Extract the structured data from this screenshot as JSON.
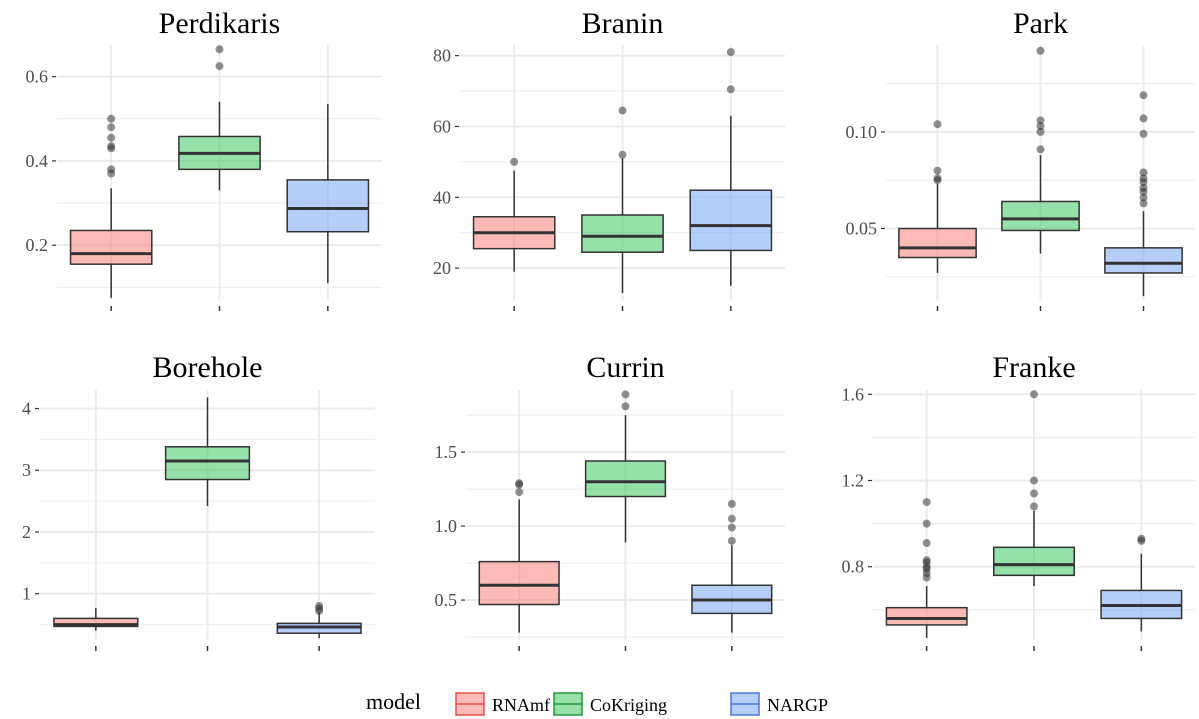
{
  "legend": {
    "title": "model",
    "items": [
      {
        "label": "RNAmf",
        "fill": "#F8766D",
        "stroke": "#E8524A"
      },
      {
        "label": "CoKriging",
        "fill": "#2DC253",
        "stroke": "#1E9A3F"
      },
      {
        "label": "NARGP",
        "fill": "#6E9EF5",
        "stroke": "#4A78D6"
      }
    ]
  },
  "colors": {
    "grid": "#EBEBEB",
    "box_border": "#333333",
    "outlier": "#333333",
    "tick_text": "#4D4D4D"
  },
  "chart_data": [
    {
      "type": "boxplot",
      "title": "Perdikaris",
      "ylim": [
        0.07,
        0.675
      ],
      "yticks": [
        0.2,
        0.4,
        0.6
      ],
      "ytick_labels": [
        "0.2",
        "0.4",
        "0.6"
      ],
      "grid": true,
      "series": [
        {
          "name": "RNAmf",
          "min": 0.075,
          "q1": 0.155,
          "median": 0.18,
          "q3": 0.235,
          "max": 0.335,
          "outliers": [
            0.37,
            0.38,
            0.43,
            0.435,
            0.455,
            0.48,
            0.5
          ]
        },
        {
          "name": "CoKriging",
          "min": 0.33,
          "q1": 0.38,
          "median": 0.418,
          "q3": 0.458,
          "max": 0.54,
          "outliers": [
            0.625,
            0.665
          ]
        },
        {
          "name": "NARGP",
          "min": 0.11,
          "q1": 0.232,
          "median": 0.287,
          "q3": 0.355,
          "max": 0.535,
          "outliers": []
        }
      ]
    },
    {
      "type": "boxplot",
      "title": "Branin",
      "ylim": [
        11,
        83
      ],
      "yticks": [
        20,
        40,
        60,
        80
      ],
      "ytick_labels": [
        "20",
        "40",
        "60",
        "80"
      ],
      "grid": true,
      "series": [
        {
          "name": "RNAmf",
          "min": 19,
          "q1": 25.5,
          "median": 30,
          "q3": 34.5,
          "max": 47.5,
          "outliers": [
            50
          ]
        },
        {
          "name": "CoKriging",
          "min": 13,
          "q1": 24.5,
          "median": 29,
          "q3": 35,
          "max": 51,
          "outliers": [
            52,
            64.5
          ]
        },
        {
          "name": "NARGP",
          "min": 15,
          "q1": 25,
          "median": 32,
          "q3": 42,
          "max": 63,
          "outliers": [
            70.5,
            81
          ]
        }
      ]
    },
    {
      "type": "boxplot",
      "title": "Park",
      "ylim": [
        0.013,
        0.145
      ],
      "yticks": [
        0.05,
        0.1
      ],
      "ytick_labels": [
        "0.05",
        "0.10"
      ],
      "grid": true,
      "series": [
        {
          "name": "RNAmf",
          "min": 0.027,
          "q1": 0.035,
          "median": 0.04,
          "q3": 0.05,
          "max": 0.073,
          "outliers": [
            0.075,
            0.076,
            0.08,
            0.104
          ]
        },
        {
          "name": "CoKriging",
          "min": 0.037,
          "q1": 0.049,
          "median": 0.055,
          "q3": 0.064,
          "max": 0.088,
          "outliers": [
            0.091,
            0.1,
            0.103,
            0.106,
            0.142
          ]
        },
        {
          "name": "NARGP",
          "min": 0.015,
          "q1": 0.027,
          "median": 0.032,
          "q3": 0.04,
          "max": 0.059,
          "outliers": [
            0.063,
            0.066,
            0.069,
            0.071,
            0.074,
            0.076,
            0.079,
            0.099,
            0.107,
            0.119
          ]
        }
      ]
    },
    {
      "type": "boxplot",
      "title": "Borehole",
      "ylim": [
        0.25,
        4.3
      ],
      "yticks": [
        1,
        2,
        3,
        4
      ],
      "ytick_labels": [
        "1",
        "2",
        "3",
        "4"
      ],
      "grid": true,
      "series": [
        {
          "name": "RNAmf",
          "min": 0.4,
          "q1": 0.47,
          "median": 0.5,
          "q3": 0.6,
          "max": 0.77,
          "outliers": []
        },
        {
          "name": "CoKriging",
          "min": 2.42,
          "q1": 2.85,
          "median": 3.15,
          "q3": 3.38,
          "max": 4.18,
          "outliers": []
        },
        {
          "name": "NARGP",
          "min": 0.28,
          "q1": 0.36,
          "median": 0.46,
          "q3": 0.52,
          "max": 0.7,
          "outliers": [
            0.72,
            0.76,
            0.8
          ]
        }
      ]
    },
    {
      "type": "boxplot",
      "title": "Currin",
      "ylim": [
        0.23,
        1.92
      ],
      "yticks": [
        0.5,
        1.0,
        1.5
      ],
      "ytick_labels": [
        "0.5",
        "1.0",
        "1.5"
      ],
      "grid": true,
      "series": [
        {
          "name": "RNAmf",
          "min": 0.28,
          "q1": 0.47,
          "median": 0.6,
          "q3": 0.76,
          "max": 1.18,
          "outliers": [
            1.23,
            1.28,
            1.29
          ]
        },
        {
          "name": "CoKriging",
          "min": 0.89,
          "q1": 1.2,
          "median": 1.3,
          "q3": 1.44,
          "max": 1.75,
          "outliers": [
            1.81,
            1.89
          ]
        },
        {
          "name": "NARGP",
          "min": 0.28,
          "q1": 0.41,
          "median": 0.5,
          "q3": 0.6,
          "max": 0.87,
          "outliers": [
            0.9,
            0.99,
            1.05,
            1.15
          ]
        }
      ]
    },
    {
      "type": "boxplot",
      "title": "Franke",
      "ylim": [
        0.46,
        1.62
      ],
      "yticks": [
        0.8,
        1.2,
        1.6
      ],
      "ytick_labels": [
        "0.8",
        "1.2",
        "1.6"
      ],
      "grid": true,
      "series": [
        {
          "name": "RNAmf",
          "min": 0.47,
          "q1": 0.53,
          "median": 0.56,
          "q3": 0.61,
          "max": 0.71,
          "outliers": [
            0.75,
            0.77,
            0.79,
            0.8,
            0.82,
            0.83,
            0.91,
            1.0,
            1.1
          ]
        },
        {
          "name": "CoKriging",
          "min": 0.71,
          "q1": 0.76,
          "median": 0.81,
          "q3": 0.89,
          "max": 1.06,
          "outliers": [
            1.08,
            1.14,
            1.2,
            1.6
          ]
        },
        {
          "name": "NARGP",
          "min": 0.5,
          "q1": 0.56,
          "median": 0.62,
          "q3": 0.69,
          "max": 0.86,
          "outliers": [
            0.92,
            0.93
          ]
        }
      ]
    }
  ]
}
